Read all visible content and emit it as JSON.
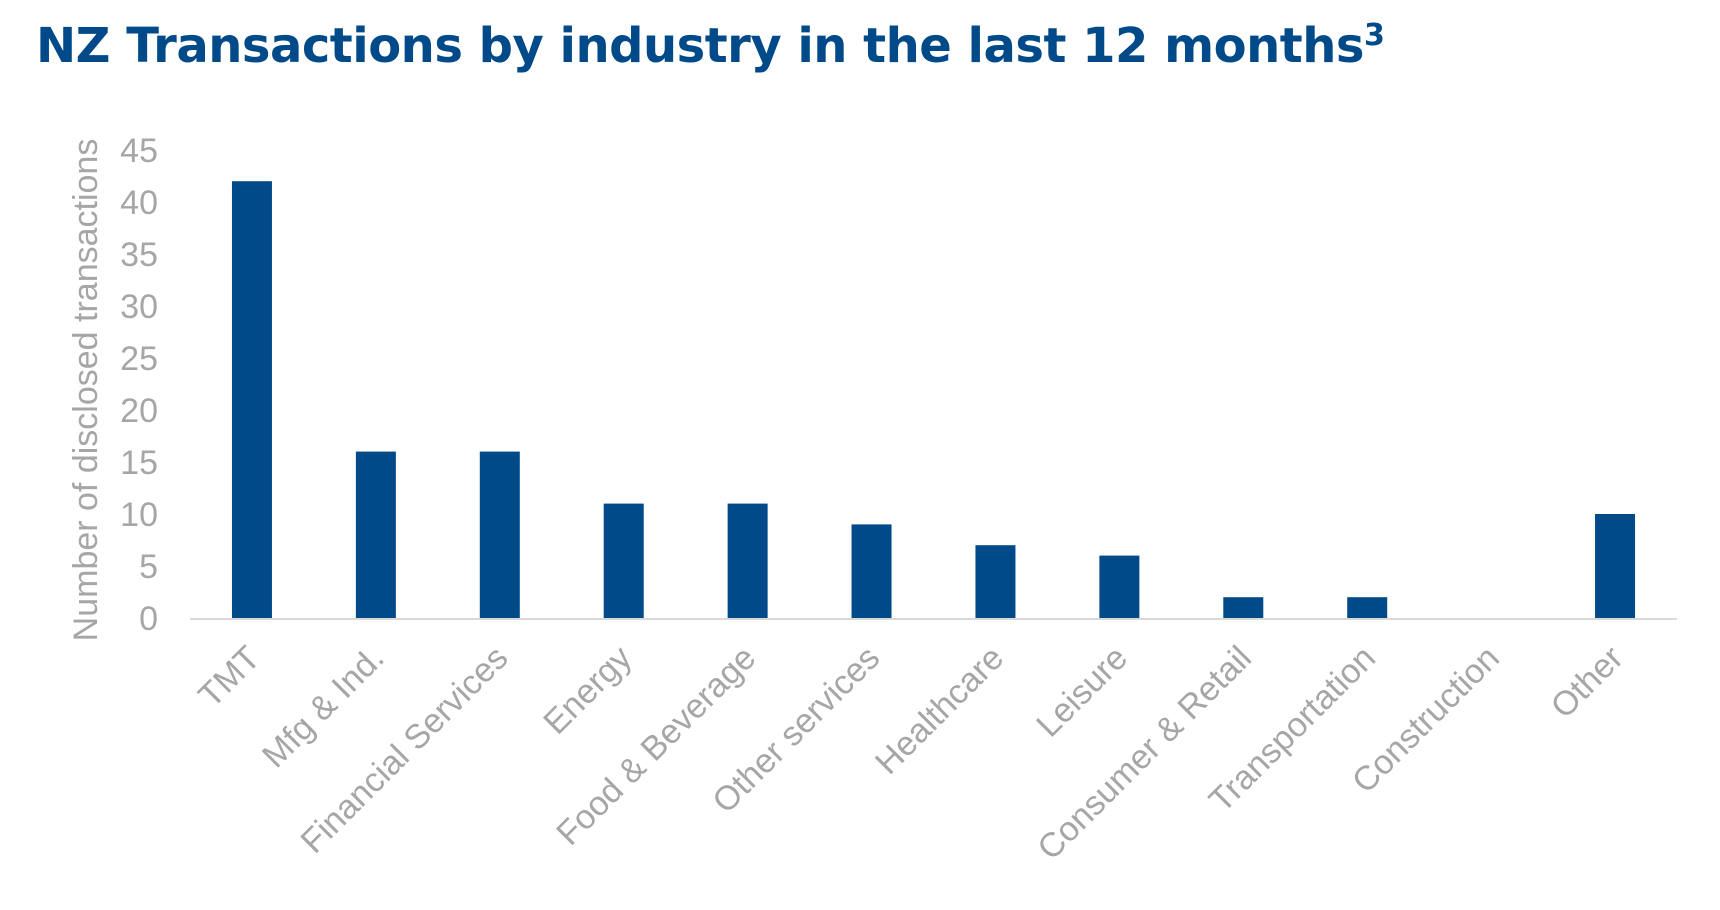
{
  "title": {
    "text": "NZ Transactions by industry in the last 12 months",
    "footnote": "3"
  },
  "colors": {
    "title": "#004A89",
    "bar": "#004A89",
    "tick_text": "#A6A6A6",
    "axis_line": "#D9D9D9"
  },
  "chart_data": {
    "type": "bar",
    "title": "NZ Transactions by industry in the last 12 months",
    "xlabel": "",
    "ylabel": "Number of disclosed transactions",
    "ylim": [
      0,
      45
    ],
    "yticks": [
      0,
      5,
      10,
      15,
      20,
      25,
      30,
      35,
      40,
      45
    ],
    "grid": false,
    "legend": "none",
    "categories": [
      "TMT",
      "Mfg & Ind.",
      "Financial Services",
      "Energy",
      "Food & Beverage",
      "Other services",
      "Healthcare",
      "Leisure",
      "Consumer & Retail",
      "Transportation",
      "Construction",
      "Other"
    ],
    "values": [
      42,
      16,
      16,
      11,
      11,
      9,
      7,
      6,
      2,
      2,
      0,
      10
    ]
  }
}
